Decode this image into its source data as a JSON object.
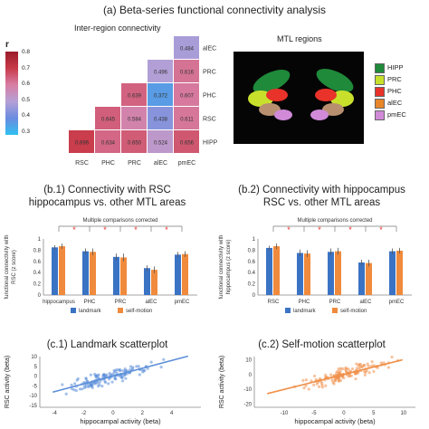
{
  "header": {
    "main_title": "(a) Beta-series functional connectivity analysis",
    "matrix_title": "Inter-region connectivity",
    "colorbar_label": "r",
    "colorbar_ticks": [
      "0.8",
      "0.7",
      "0.6",
      "0.5",
      "0.4",
      "0.3"
    ],
    "mtl_title": "MTL regions",
    "b1_title_line1": "(b.1) Connectivity with RSC",
    "b1_title_line2": "hippocampus vs. other MTL areas",
    "b2_title_line1": "(b.2) Connectivity with hippocampus",
    "b2_title_line2": "RSC vs. other MTL areas",
    "c1_title": "(c.1) Landmark scatterplot",
    "c2_title": "(c.2) Self-motion scatterplot",
    "mc_note": "Multiple comparisons corrected"
  },
  "colors": {
    "landmark": "#3b73c4",
    "self_motion": "#f08a3c",
    "sig_star": "#e8322a",
    "scatter_blue": "#5b8ed8",
    "scatter_orange": "#f0904a"
  },
  "mtl_legend": [
    {
      "label": "HIPP",
      "color": "#1f8a3a"
    },
    {
      "label": "PRC",
      "color": "#c8e02c"
    },
    {
      "label": "PHC",
      "color": "#e8322a"
    },
    {
      "label": "alEC",
      "color": "#e8862a"
    },
    {
      "label": "pmEC",
      "color": "#d08ad8"
    }
  ],
  "chart_data": [
    {
      "type": "heatmap",
      "title": "Inter-region connectivity",
      "rows": [
        "alEC",
        "PRC",
        "PHC",
        "RSC",
        "HIPP"
      ],
      "cols": [
        "RSC",
        "PHC",
        "PRC",
        "alEC",
        "pmEC"
      ],
      "values": [
        [
          null,
          null,
          null,
          null,
          0.484
        ],
        [
          null,
          null,
          null,
          0.496,
          0.616
        ],
        [
          null,
          null,
          0.639,
          0.372,
          0.607
        ],
        [
          null,
          0.645,
          0.584,
          0.438,
          0.611
        ],
        [
          0.696,
          0.634,
          0.65,
          0.524,
          0.656
        ]
      ],
      "colorbar_range": [
        0.3,
        0.8
      ]
    },
    {
      "type": "bar",
      "title": "(b.1) Connectivity with RSC hippocampus vs. other MTL areas",
      "ylabel": "functional connectivity with RSC (z score)",
      "ylim": [
        0,
        1.0
      ],
      "yticks": [
        "0",
        "0.2",
        "0.4",
        "0.6",
        "0.8",
        "1"
      ],
      "categories": [
        "hippocampus",
        "PHC",
        "PRC",
        "alEC",
        "pmEC"
      ],
      "series": [
        {
          "name": "landmark",
          "values": [
            0.85,
            0.78,
            0.68,
            0.48,
            0.72
          ],
          "errors": [
            0.04,
            0.05,
            0.06,
            0.05,
            0.05
          ]
        },
        {
          "name": "self-motion",
          "values": [
            0.87,
            0.77,
            0.67,
            0.45,
            0.73
          ],
          "errors": [
            0.05,
            0.06,
            0.07,
            0.06,
            0.05
          ]
        }
      ],
      "significant": [
        "PHC",
        "PRC",
        "alEC",
        "pmEC"
      ]
    },
    {
      "type": "bar",
      "title": "(b.2) Connectivity with hippocampus RSC vs. other MTL areas",
      "ylabel": "functional connectivity with hippocampus (z score)",
      "ylim": [
        0,
        1.0
      ],
      "yticks": [
        "0",
        "0.2",
        "0.4",
        "0.6",
        "0.8",
        "1"
      ],
      "categories": [
        "RSC",
        "PHC",
        "PRC",
        "alEC",
        "pmEC"
      ],
      "series": [
        {
          "name": "landmark",
          "values": [
            0.84,
            0.75,
            0.77,
            0.58,
            0.78
          ],
          "errors": [
            0.04,
            0.06,
            0.06,
            0.05,
            0.05
          ]
        },
        {
          "name": "self-motion",
          "values": [
            0.87,
            0.74,
            0.78,
            0.57,
            0.79
          ],
          "errors": [
            0.05,
            0.06,
            0.06,
            0.06,
            0.05
          ]
        }
      ],
      "significant": [
        "PHC",
        "PRC",
        "alEC",
        "pmEC"
      ]
    },
    {
      "type": "scatter",
      "title": "(c.1) Landmark scatterplot",
      "xlabel": "hippocampal activity (beta)",
      "ylabel": "RSC activity (beta)",
      "xlim": [
        -5,
        6
      ],
      "ylim": [
        -16,
        10
      ],
      "xticks": [
        "-4",
        "-2",
        "0",
        "2",
        "4"
      ],
      "yticks": [
        "10",
        "5",
        "0",
        "-5",
        "-10",
        "-15"
      ],
      "fit": {
        "slope": 2.0,
        "intercept": 0.0
      }
    },
    {
      "type": "scatter",
      "title": "(c.2) Self-motion scatterplot",
      "xlabel": "hippocampal activity (beta)",
      "ylabel": "RSC activity (beta)",
      "xlim": [
        -15,
        12
      ],
      "ylim": [
        -22,
        12
      ],
      "xticks": [
        "-10",
        "-5",
        "0",
        "5",
        "10"
      ],
      "yticks": [
        "10",
        "0",
        "-10",
        "-20"
      ],
      "fit": {
        "slope": 1.0,
        "intercept": 0.0
      }
    }
  ],
  "bar_legend": {
    "landmark": "landmark",
    "self_motion": "self-motion"
  }
}
